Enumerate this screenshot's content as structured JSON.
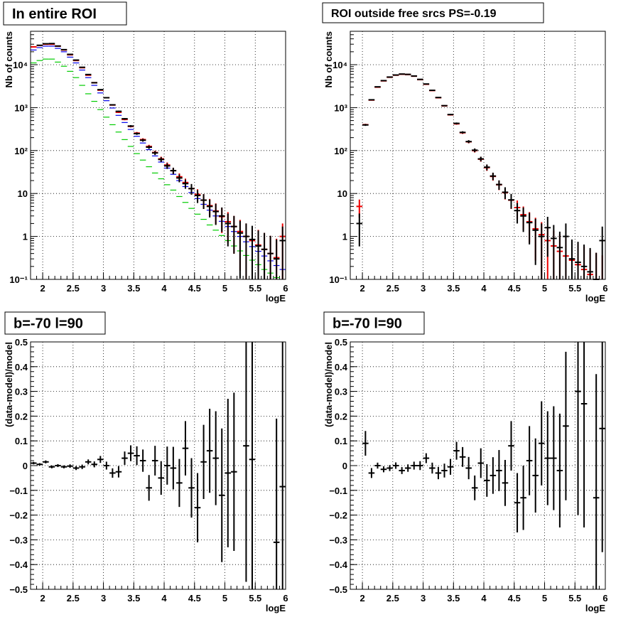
{
  "chart_data": [
    {
      "type": "scatter",
      "title": "In entire ROI",
      "xlabel": "logE",
      "ylabel": "Nb of counts",
      "xlim": [
        1.8,
        6.0
      ],
      "ylim": [
        0.1,
        60000
      ],
      "yscale": "log",
      "grid": true,
      "xticks": [
        2,
        2.5,
        3,
        3.5,
        4,
        4.5,
        5,
        5.5,
        6
      ],
      "xtick_labels": [
        "2",
        "2.5",
        "3",
        "3.5",
        "4",
        "4.5",
        "5",
        "5.5",
        "6"
      ],
      "yticks": [
        0.1,
        1,
        10,
        100,
        1000,
        10000
      ],
      "ytick_labels": [
        "10⁻¹",
        "1",
        "10",
        "10²",
        "10³",
        "10⁴"
      ],
      "series": [
        {
          "color": "#00cc00",
          "style": "hist",
          "x": [
            1.85,
            1.95,
            2.05,
            2.15,
            2.25,
            2.35,
            2.45,
            2.55,
            2.65,
            2.75,
            2.85,
            2.95,
            3.05,
            3.15,
            3.25,
            3.35,
            3.45,
            3.55,
            3.65,
            3.75,
            3.85,
            3.95,
            4.05,
            4.15,
            4.25,
            4.35,
            4.45,
            4.55,
            4.65,
            4.75,
            4.85,
            4.95,
            5.05,
            5.15,
            5.25,
            5.35,
            5.45,
            5.55,
            5.65,
            5.75,
            5.85,
            5.95
          ],
          "y": [
            11000,
            12500,
            13500,
            13500,
            11500,
            9200,
            7000,
            5000,
            3300,
            2100,
            1400,
            900,
            600,
            400,
            270,
            180,
            125,
            85,
            60,
            42,
            30,
            22,
            16,
            12,
            8.5,
            6.2,
            4.5,
            3.3,
            2.5,
            1.85,
            1.4,
            1.05,
            0.8,
            0.6,
            0.46,
            0.36,
            0.28,
            0.22,
            0.17,
            0.14,
            0.11,
            0.09
          ]
        },
        {
          "color": "#0000ee",
          "style": "hist",
          "x": [
            1.85,
            1.95,
            2.05,
            2.15,
            2.25,
            2.35,
            2.45,
            2.55,
            2.65,
            2.75,
            2.85,
            2.95,
            3.05,
            3.15,
            3.25,
            3.35,
            3.45,
            3.55,
            3.65,
            3.75,
            3.85,
            3.95,
            4.05,
            4.15,
            4.25,
            4.35,
            4.45,
            4.55,
            4.65,
            4.75,
            4.85,
            4.95,
            5.05,
            5.15,
            5.25,
            5.35,
            5.45,
            5.55,
            5.65,
            5.75,
            5.85,
            5.95
          ],
          "y": [
            22000,
            25000,
            27000,
            27000,
            24000,
            20000,
            15000,
            11000,
            7500,
            5000,
            3300,
            2200,
            1450,
            980,
            660,
            450,
            310,
            215,
            150,
            105,
            75,
            54,
            39,
            28,
            20,
            14.5,
            10.5,
            7.6,
            5.6,
            4.1,
            3.0,
            2.25,
            1.7,
            1.3,
            1.0,
            0.75,
            0.58,
            0.45,
            0.35,
            0.27,
            0.21,
            0.17
          ]
        },
        {
          "color": "#ee0000",
          "style": "errorbar",
          "x": [
            1.85,
            1.95,
            2.05,
            2.15,
            2.25,
            2.35,
            2.45,
            2.55,
            2.65,
            2.75,
            2.85,
            2.95,
            3.05,
            3.15,
            3.25,
            3.35,
            3.45,
            3.55,
            3.65,
            3.75,
            3.85,
            3.95,
            4.05,
            4.15,
            4.25,
            4.35,
            4.45,
            4.55,
            4.65,
            4.75,
            4.85,
            4.95,
            5.05,
            5.15,
            5.25,
            5.35,
            5.45,
            5.55,
            5.65,
            5.75,
            5.85,
            5.95
          ],
          "y": [
            26000,
            28000,
            30000,
            30000,
            27000,
            22000,
            17000,
            12500,
            8500,
            5700,
            3800,
            2550,
            1700,
            1150,
            780,
            530,
            365,
            255,
            180,
            125,
            90,
            64,
            46,
            34,
            24.5,
            18,
            13,
            9.5,
            7.0,
            5.2,
            3.9,
            2.9,
            2.2,
            1.7,
            1.3,
            1.0,
            0.8,
            0.63,
            0.5,
            0.4,
            0.32,
            1.0
          ]
        },
        {
          "color": "#000000",
          "style": "errorbar",
          "x": [
            1.95,
            2.05,
            2.15,
            2.25,
            2.35,
            2.45,
            2.55,
            2.65,
            2.75,
            2.85,
            2.95,
            3.05,
            3.15,
            3.25,
            3.35,
            3.45,
            3.55,
            3.65,
            3.75,
            3.85,
            3.95,
            4.05,
            4.15,
            4.25,
            4.35,
            4.45,
            4.55,
            4.65,
            4.75,
            4.85,
            4.95,
            5.05,
            5.15,
            5.25,
            5.35,
            5.45,
            5.55,
            5.65,
            5.75,
            5.85,
            5.95
          ],
          "y": [
            28300,
            30700,
            31000,
            27200,
            22400,
            17400,
            12800,
            8700,
            5900,
            3800,
            2620,
            1700,
            1160,
            820,
            550,
            372,
            248,
            174,
            120,
            88,
            62,
            44,
            34,
            23,
            17,
            13,
            9,
            7,
            5,
            3.8,
            3.0,
            2.0,
            1.7,
            1.2,
            1.0,
            0.85,
            0.6,
            0.5,
            0.4,
            0.3,
            0.8
          ]
        }
      ]
    },
    {
      "type": "scatter",
      "title": "ROI outside free srcs PS=-0.19",
      "xlabel": "logE",
      "ylabel": "Nb of counts",
      "xlim": [
        1.8,
        6.0
      ],
      "ylim": [
        0.1,
        60000
      ],
      "yscale": "log",
      "grid": true,
      "xticks": [
        2,
        2.5,
        3,
        3.5,
        4,
        4.5,
        5,
        5.5,
        6
      ],
      "xtick_labels": [
        "2",
        "2.5",
        "3",
        "3.5",
        "4",
        "4.5",
        "5",
        "5.5",
        "6"
      ],
      "yticks": [
        0.1,
        1,
        10,
        100,
        1000,
        10000
      ],
      "ytick_labels": [
        "10⁻¹",
        "1",
        "10",
        "10²",
        "10³",
        "10⁴"
      ],
      "series": [
        {
          "color": "#ee0000",
          "style": "errorbar",
          "x": [
            1.95,
            2.05,
            2.15,
            2.25,
            2.35,
            2.45,
            2.55,
            2.65,
            2.75,
            2.85,
            2.95,
            3.05,
            3.15,
            3.25,
            3.35,
            3.45,
            3.55,
            3.65,
            3.75,
            3.85,
            3.95,
            4.05,
            4.15,
            4.25,
            4.35,
            4.45,
            4.55,
            4.65,
            4.75,
            4.85,
            4.95,
            5.05,
            5.15,
            5.25,
            5.35,
            5.45,
            5.55,
            5.65,
            5.75,
            5.85,
            5.95
          ],
          "y": [
            5,
            400,
            1500,
            3000,
            4200,
            5100,
            5700,
            6000,
            5900,
            5400,
            4500,
            3500,
            2500,
            1700,
            1100,
            680,
            420,
            260,
            160,
            100,
            63,
            40,
            25,
            16,
            10.5,
            7,
            4.7,
            3.2,
            2.2,
            1.5,
            1.1,
            0.8,
            0.6,
            0.45,
            0.35,
            0.28,
            0.22,
            0.17,
            0.13,
            0.1,
            0.08
          ]
        },
        {
          "color": "#000000",
          "style": "errorbar",
          "x": [
            1.95,
            2.05,
            2.15,
            2.25,
            2.35,
            2.45,
            2.55,
            2.65,
            2.75,
            2.85,
            2.95,
            3.05,
            3.15,
            3.25,
            3.35,
            3.45,
            3.55,
            3.65,
            3.75,
            3.85,
            3.95,
            4.05,
            4.15,
            4.25,
            4.35,
            4.45,
            4.55,
            4.65,
            4.75,
            4.85,
            4.95,
            5.05,
            5.15,
            5.25,
            5.35,
            5.45,
            5.55,
            5.65,
            5.75,
            5.85,
            5.95
          ],
          "y": [
            2,
            395,
            1520,
            3050,
            4250,
            5150,
            5750,
            6050,
            5950,
            5450,
            4550,
            3550,
            2530,
            1720,
            1110,
            690,
            430,
            265,
            162,
            102,
            64,
            41,
            25.5,
            16.2,
            10.7,
            7.1,
            4.0,
            3.0,
            2.1,
            1.4,
            1.0,
            1.6,
            0.9,
            0.55,
            1.0,
            0.3,
            0.25,
            0.2,
            0.15,
            0.1,
            0.8
          ]
        }
      ]
    },
    {
      "type": "scatter",
      "title": "b=-70 l=90",
      "xlabel": "logE",
      "ylabel": "(data-model)/model",
      "xlim": [
        1.8,
        6.0
      ],
      "ylim": [
        -0.5,
        0.5
      ],
      "grid": true,
      "xticks": [
        2,
        2.5,
        3,
        3.5,
        4,
        4.5,
        5,
        5.5,
        6
      ],
      "xtick_labels": [
        "2",
        "2.5",
        "3",
        "3.5",
        "4",
        "4.5",
        "5",
        "5.5",
        "6"
      ],
      "yticks": [
        -0.5,
        -0.4,
        -0.3,
        -0.2,
        -0.1,
        0,
        0.1,
        0.2,
        0.3,
        0.4,
        0.5
      ],
      "ytick_labels": [
        "−0.5",
        "−0.4",
        "−0.3",
        "−0.2",
        "−0.1",
        "0",
        "0.1",
        "0.2",
        "0.3",
        "0.4",
        "0.5"
      ],
      "series": [
        {
          "color": "#000000",
          "style": "errorbar",
          "x": [
            1.85,
            1.95,
            2.05,
            2.15,
            2.25,
            2.35,
            2.45,
            2.55,
            2.65,
            2.75,
            2.85,
            2.95,
            3.05,
            3.15,
            3.25,
            3.35,
            3.45,
            3.55,
            3.65,
            3.75,
            3.85,
            3.95,
            4.05,
            4.15,
            4.25,
            4.35,
            4.45,
            4.55,
            4.65,
            4.75,
            4.85,
            4.95,
            5.05,
            5.15,
            5.25,
            5.35,
            5.45,
            5.55,
            5.65,
            5.75,
            5.85,
            5.95
          ],
          "y": [
            0.01,
            0.005,
            0.015,
            -0.005,
            0.0,
            -0.005,
            -0.002,
            -0.01,
            -0.005,
            0.015,
            0.005,
            0.025,
            0.0,
            -0.03,
            -0.025,
            0.03,
            0.05,
            0.04,
            0.02,
            -0.09,
            0.02,
            -0.05,
            0.0,
            -0.01,
            -0.07,
            0.07,
            -0.09,
            -0.17,
            0.015,
            0.06,
            0.03,
            -0.12,
            -0.03,
            -0.025,
            null,
            0.08,
            0.025,
            null,
            null,
            null,
            -0.31,
            -0.085
          ],
          "err": [
            0.005,
            0.005,
            0.006,
            0.006,
            0.006,
            0.006,
            0.007,
            0.008,
            0.009,
            0.01,
            0.012,
            0.014,
            0.016,
            0.019,
            0.023,
            0.027,
            0.032,
            0.038,
            0.045,
            0.052,
            0.06,
            0.068,
            0.077,
            0.086,
            0.097,
            0.11,
            0.12,
            0.14,
            0.15,
            0.17,
            0.19,
            0.27,
            0.3,
            0.32,
            null,
            0.55,
            0.6,
            null,
            null,
            null,
            0.5,
            0.6
          ]
        }
      ]
    },
    {
      "type": "scatter",
      "title": "b=-70 l=90",
      "xlabel": "logE",
      "ylabel": "(data-model)/model",
      "xlim": [
        1.8,
        6.0
      ],
      "ylim": [
        -0.5,
        0.5
      ],
      "grid": true,
      "xticks": [
        2,
        2.5,
        3,
        3.5,
        4,
        4.5,
        5,
        5.5,
        6
      ],
      "xtick_labels": [
        "2",
        "2.5",
        "3",
        "3.5",
        "4",
        "4.5",
        "5",
        "5.5",
        "6"
      ],
      "yticks": [
        -0.5,
        -0.4,
        -0.3,
        -0.2,
        -0.1,
        0,
        0.1,
        0.2,
        0.3,
        0.4,
        0.5
      ],
      "ytick_labels": [
        "−0.5",
        "−0.4",
        "−0.3",
        "−0.2",
        "−0.1",
        "0",
        "0.1",
        "0.2",
        "0.3",
        "0.4",
        "0.5"
      ],
      "series": [
        {
          "color": "#000000",
          "style": "errorbar",
          "x": [
            2.05,
            2.15,
            2.25,
            2.35,
            2.45,
            2.55,
            2.65,
            2.75,
            2.85,
            2.95,
            3.05,
            3.15,
            3.25,
            3.35,
            3.45,
            3.55,
            3.65,
            3.75,
            3.85,
            3.95,
            4.05,
            4.15,
            4.25,
            4.35,
            4.45,
            4.55,
            4.65,
            4.75,
            4.85,
            4.95,
            5.05,
            5.15,
            5.25,
            5.35,
            5.45,
            5.55,
            5.65,
            5.75,
            5.85,
            5.95
          ],
          "y": [
            0.09,
            -0.03,
            0.0,
            -0.015,
            -0.01,
            0.0,
            -0.02,
            -0.01,
            0.0,
            0.0,
            0.03,
            -0.01,
            -0.03,
            -0.02,
            -0.005,
            0.06,
            0.035,
            -0.01,
            -0.09,
            0.01,
            -0.06,
            -0.04,
            -0.02,
            -0.07,
            0.08,
            -0.15,
            -0.13,
            0.02,
            -0.04,
            0.09,
            0.03,
            0.03,
            -0.02,
            0.16,
            null,
            0.3,
            0.25,
            null,
            -0.13,
            0.15
          ],
          "err": [
            0.05,
            0.02,
            0.012,
            0.012,
            0.012,
            0.013,
            0.014,
            0.015,
            0.016,
            0.018,
            0.02,
            0.022,
            0.025,
            0.028,
            0.032,
            0.036,
            0.04,
            0.045,
            0.05,
            0.06,
            0.066,
            0.074,
            0.083,
            0.093,
            0.1,
            0.12,
            0.13,
            0.14,
            0.15,
            0.17,
            0.19,
            0.21,
            0.23,
            0.3,
            null,
            0.5,
            0.5,
            null,
            0.5,
            0.5
          ]
        }
      ]
    }
  ]
}
